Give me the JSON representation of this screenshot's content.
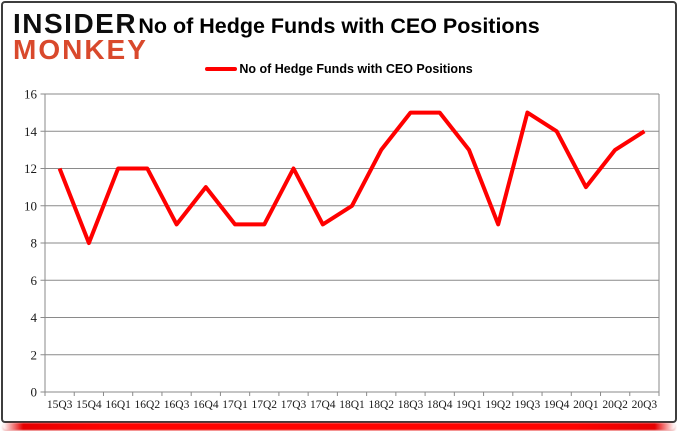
{
  "brand": {
    "line1": "INSIDER",
    "line2": "MONKEY",
    "monkey_color": "#d9492c"
  },
  "header": {
    "title": "No of Hedge Funds with CEO Positions"
  },
  "legend": {
    "label": "No of Hedge Funds with CEO Positions",
    "swatch_color": "#ff0000",
    "position": "top"
  },
  "chart_data": {
    "type": "line",
    "title": "No of Hedge Funds with CEO Positions",
    "categories": [
      "15Q3",
      "15Q4",
      "16Q1",
      "16Q2",
      "16Q3",
      "16Q4",
      "17Q1",
      "17Q2",
      "17Q3",
      "17Q4",
      "18Q1",
      "18Q2",
      "18Q3",
      "18Q4",
      "19Q1",
      "19Q2",
      "19Q3",
      "19Q4",
      "20Q1",
      "20Q2",
      "20Q3"
    ],
    "series": [
      {
        "name": "No of Hedge Funds with CEO Positions",
        "color": "#ff0000",
        "values": [
          12,
          8,
          12,
          12,
          9,
          11,
          9,
          9,
          12,
          9,
          10,
          13,
          15,
          15,
          13,
          9,
          15,
          14,
          11,
          13,
          14
        ]
      }
    ],
    "xlabel": "",
    "ylabel": "",
    "ylim": [
      0,
      16
    ],
    "ytick_step": 2,
    "grid": true,
    "gridline_color": "#8a8a8a",
    "legend_position": "top"
  }
}
